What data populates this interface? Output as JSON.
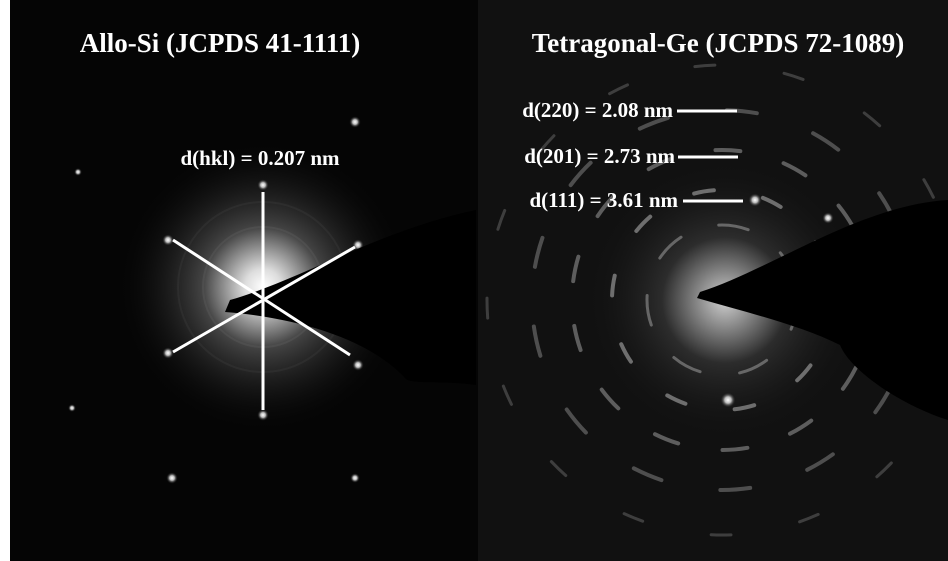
{
  "panels": [
    {
      "title": "Allo-Si (JCPDS 41-1111)",
      "annotations": [
        "d(hkl) = 0.207 nm"
      ]
    },
    {
      "title": "Tetragonal-Ge (JCPDS 72-1089)",
      "annotations": [
        "d(220) = 2.08 nm",
        "d(201) = 2.73 nm",
        "d(111) = 3.61 nm"
      ]
    }
  ]
}
